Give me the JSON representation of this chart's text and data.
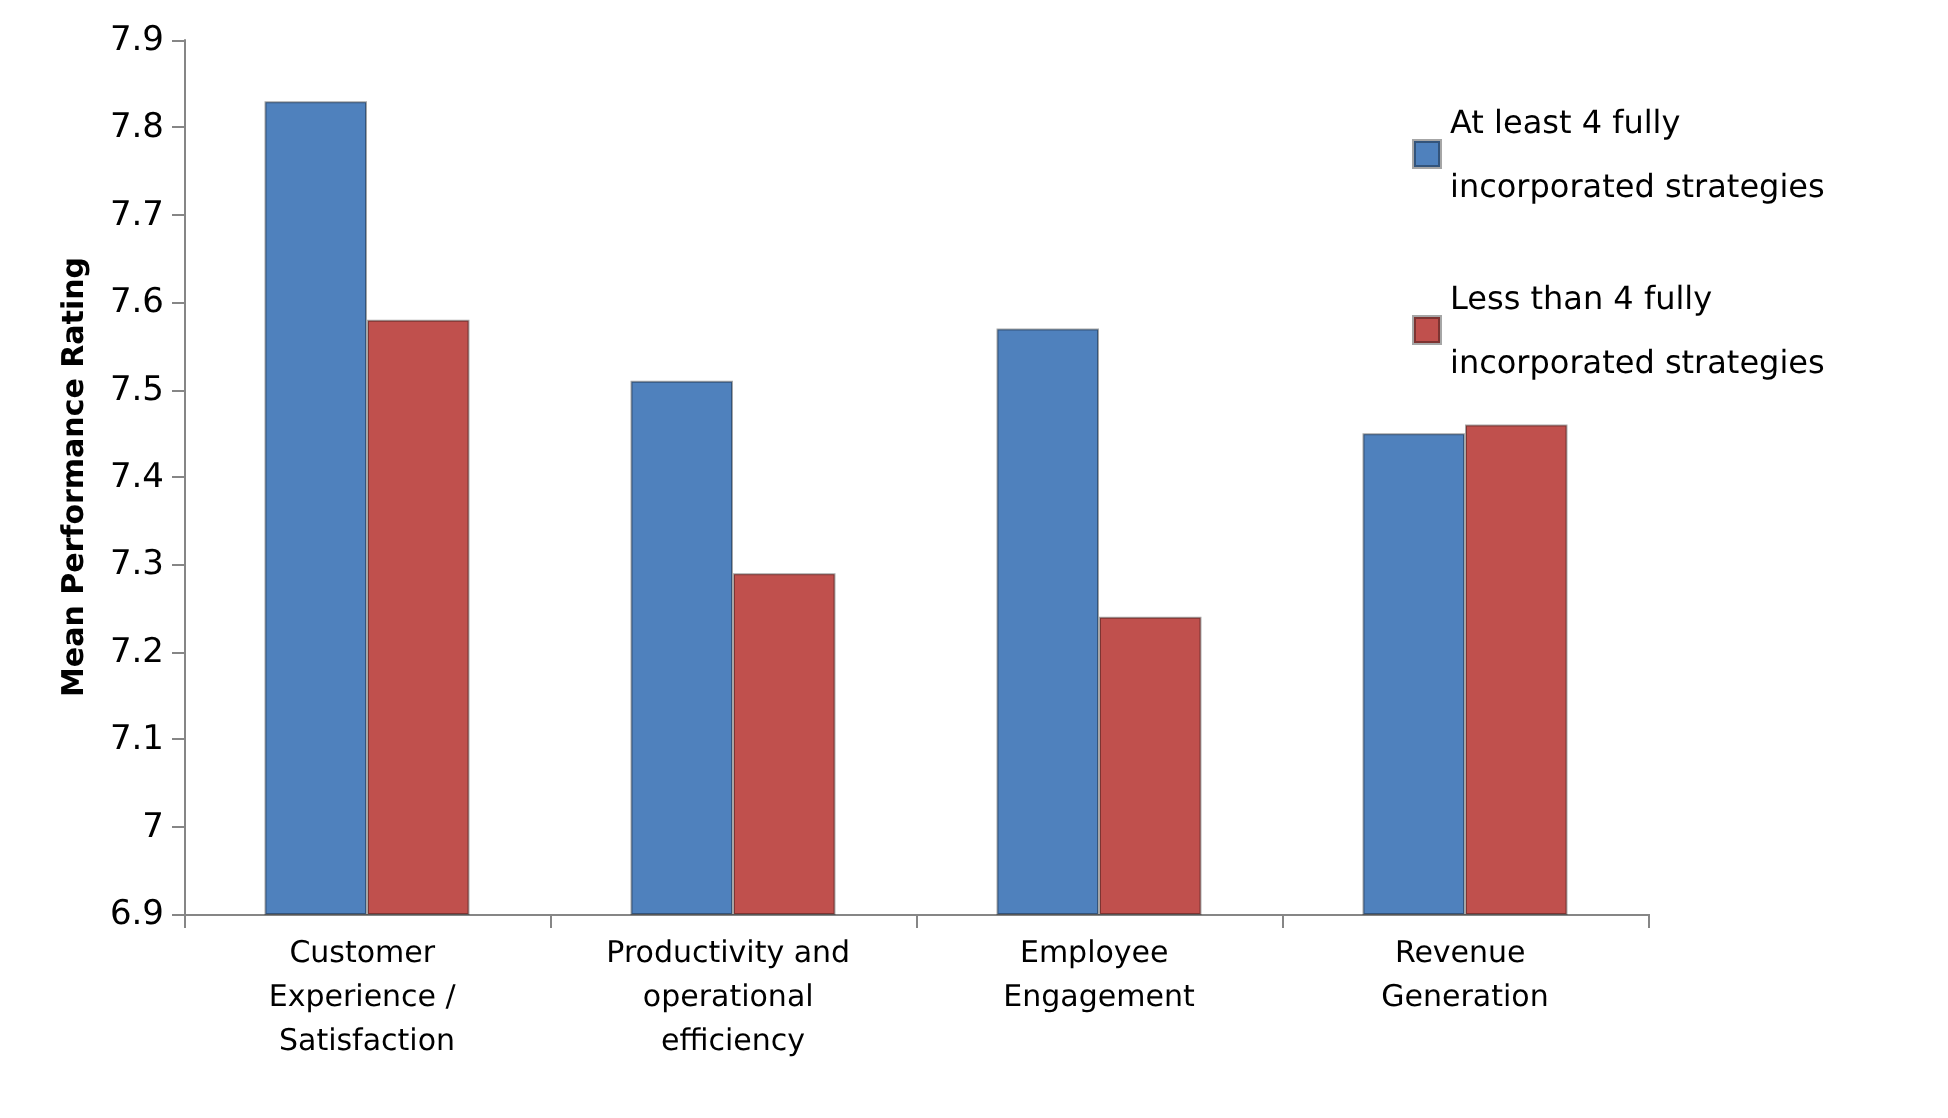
{
  "chart_data": {
    "type": "bar",
    "ylabel": "Mean Performance Rating",
    "categories": [
      "Customer Experience / Satisfaction",
      "Productivity and operational efficiency",
      "Employee Engagement",
      "Revenue Generation"
    ],
    "series": [
      {
        "name": "At least 4 fully incorporated strategies",
        "color": "#4f81bd",
        "values": [
          7.83,
          7.51,
          7.57,
          7.45
        ]
      },
      {
        "name": "Less than 4 fully incorporated strategies",
        "color": "#c0504d",
        "values": [
          7.58,
          7.29,
          7.24,
          7.46
        ]
      }
    ],
    "ylim": [
      6.9,
      7.9
    ],
    "yticks": [
      6.9,
      7,
      7.1,
      7.2,
      7.3,
      7.4,
      7.5,
      7.6,
      7.7,
      7.8,
      7.9
    ],
    "grid": false,
    "legend": "right"
  }
}
